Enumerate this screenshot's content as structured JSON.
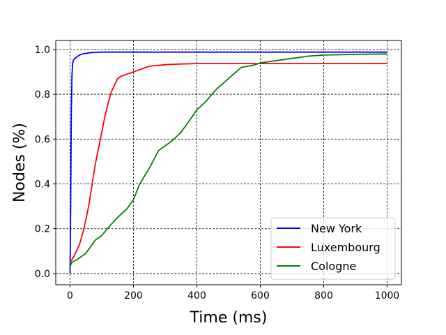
{
  "chart_data": {
    "type": "line",
    "title": "",
    "xlabel": "Time (ms)",
    "ylabel": "Nodes (%)",
    "xlim": [
      -45,
      1045
    ],
    "ylim": [
      -0.05,
      1.04
    ],
    "xticks": [
      0,
      200,
      400,
      600,
      800,
      1000
    ],
    "yticks": [
      0.0,
      0.2,
      0.4,
      0.6,
      0.8,
      1.0
    ],
    "xtick_labels": [
      "0",
      "200",
      "400",
      "600",
      "800",
      "1000"
    ],
    "ytick_labels": [
      "0.0",
      "0.2",
      "0.4",
      "0.6",
      "0.8",
      "1.0"
    ],
    "grid": true,
    "grid_style": "dashed",
    "legend_position": "lower-right",
    "series": [
      {
        "name": "New York",
        "color": "#0000ff",
        "x": [
          0,
          2,
          4,
          6,
          8,
          10,
          15,
          20,
          30,
          40,
          60,
          80,
          100,
          150,
          200,
          400,
          600,
          800,
          1000
        ],
        "y": [
          0.0,
          0.3,
          0.7,
          0.88,
          0.93,
          0.95,
          0.96,
          0.965,
          0.975,
          0.98,
          0.985,
          0.987,
          0.988,
          0.988,
          0.988,
          0.988,
          0.988,
          0.988,
          0.988
        ]
      },
      {
        "name": "Luxembourg",
        "color": "#ff0000",
        "x": [
          0,
          10,
          20,
          30,
          40,
          50,
          60,
          70,
          80,
          90,
          100,
          110,
          120,
          130,
          140,
          150,
          160,
          180,
          200,
          220,
          250,
          300,
          350,
          400,
          500,
          600,
          800,
          1000
        ],
        "y": [
          0.05,
          0.07,
          0.1,
          0.13,
          0.18,
          0.24,
          0.31,
          0.4,
          0.49,
          0.56,
          0.63,
          0.7,
          0.76,
          0.81,
          0.84,
          0.87,
          0.88,
          0.89,
          0.9,
          0.91,
          0.925,
          0.932,
          0.935,
          0.937,
          0.937,
          0.937,
          0.937,
          0.937
        ]
      },
      {
        "name": "Cologne",
        "color": "#008000",
        "x": [
          0,
          5,
          20,
          50,
          80,
          100,
          130,
          150,
          180,
          200,
          220,
          250,
          280,
          320,
          350,
          380,
          400,
          430,
          460,
          500,
          540,
          580,
          600,
          650,
          700,
          750,
          800,
          900,
          1000
        ],
        "y": [
          0.03,
          0.05,
          0.06,
          0.09,
          0.15,
          0.17,
          0.22,
          0.25,
          0.29,
          0.33,
          0.4,
          0.47,
          0.55,
          0.59,
          0.63,
          0.69,
          0.73,
          0.77,
          0.82,
          0.87,
          0.92,
          0.93,
          0.94,
          0.95,
          0.96,
          0.97,
          0.975,
          0.978,
          0.98
        ]
      }
    ]
  }
}
